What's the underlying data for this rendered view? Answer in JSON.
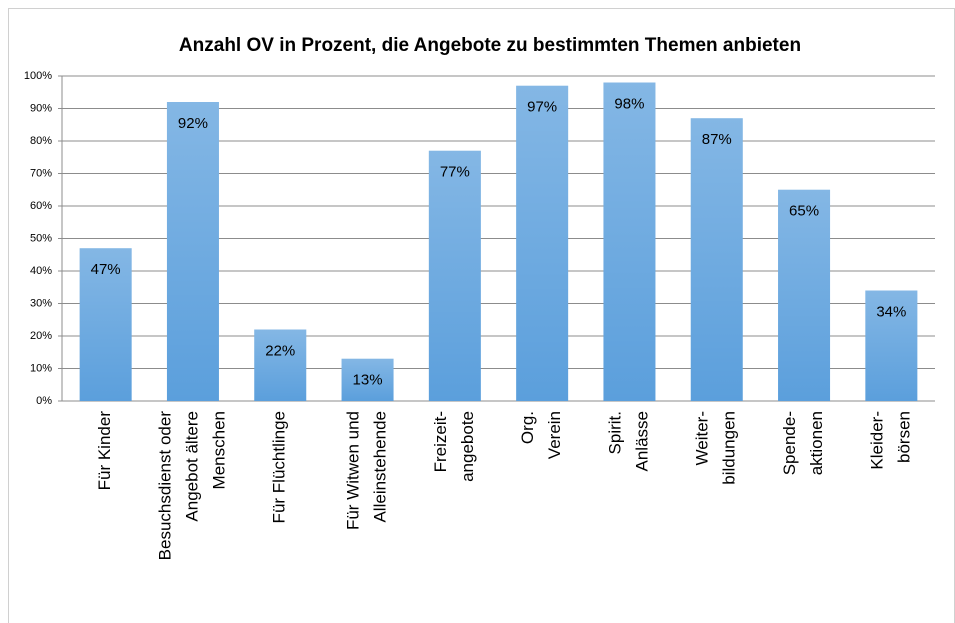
{
  "chart_data": {
    "type": "bar",
    "title": "Anzahl OV in Prozent, die Angebote zu bestimmten Themen anbieten",
    "categories": [
      [
        "Für Kinder"
      ],
      [
        "Besuchsdienst oder",
        "Angebot ältere",
        "Menschen"
      ],
      [
        "Für Flüchtlinge"
      ],
      [
        "Für Witwen und",
        "Alleinstehende"
      ],
      [
        "Freizeit-",
        "angebote"
      ],
      [
        "Org.",
        "Verein"
      ],
      [
        "Spirit.",
        "Anlässe"
      ],
      [
        "Weiter-",
        "bildungen"
      ],
      [
        "Spende-",
        "aktionen"
      ],
      [
        "Kleider-",
        "börsen"
      ]
    ],
    "values": [
      47,
      92,
      22,
      13,
      77,
      97,
      98,
      87,
      65,
      34
    ],
    "value_labels": [
      "47%",
      "92%",
      "22%",
      "13%",
      "77%",
      "97%",
      "98%",
      "87%",
      "65%",
      "34%"
    ],
    "color": "#5b9fdc",
    "ylim": [
      0,
      100
    ],
    "yticks": [
      {
        "value": 0,
        "label": "0%"
      },
      {
        "value": 10,
        "label": "10%"
      },
      {
        "value": 20,
        "label": "20%"
      },
      {
        "value": 30,
        "label": "30%"
      },
      {
        "value": 40,
        "label": "40%"
      },
      {
        "value": 50,
        "label": "50%"
      },
      {
        "value": 60,
        "label": "60%"
      },
      {
        "value": 70,
        "label": "70%"
      },
      {
        "value": 80,
        "label": "80%"
      },
      {
        "value": 90,
        "label": "90%"
      },
      {
        "value": 100,
        "label": "100%"
      }
    ],
    "grid": true
  }
}
